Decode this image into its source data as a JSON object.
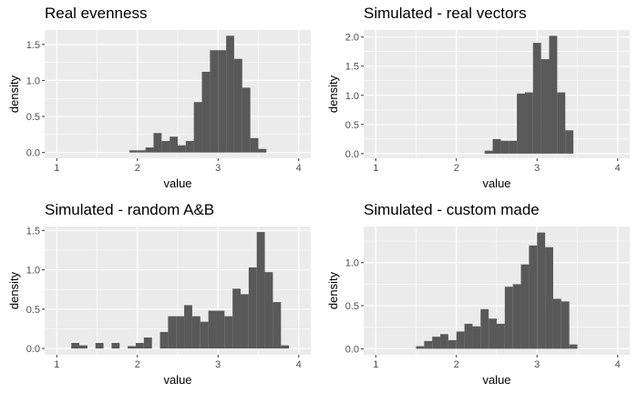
{
  "chart_data": [
    {
      "type": "bar",
      "title": "Real evenness",
      "xlabel": "value",
      "ylabel": "density",
      "xlim": [
        0.85,
        4.15
      ],
      "ylim": [
        -0.08,
        1.7
      ],
      "xticks": [
        "1",
        "2",
        "3",
        "4"
      ],
      "yticks": [
        "0.0",
        "0.5",
        "1.0",
        "1.5"
      ],
      "bin_start": 1.9,
      "bin_width": 0.1,
      "values": [
        0.03,
        0.03,
        0.07,
        0.27,
        0.16,
        0.22,
        0.1,
        0.16,
        0.7,
        1.12,
        1.42,
        1.42,
        1.62,
        1.3,
        0.9,
        0.2,
        0.05
      ],
      "bar_color": "#595959",
      "panel_bg": "#EBEBEB",
      "grid": true
    },
    {
      "type": "bar",
      "title": "Simulated - real vectors",
      "xlabel": "value",
      "ylabel": "density",
      "xlim": [
        0.85,
        4.15
      ],
      "ylim": [
        -0.08,
        2.12
      ],
      "xticks": [
        "1",
        "2",
        "3",
        "4"
      ],
      "yticks": [
        "0.0",
        "0.5",
        "1.0",
        "1.5",
        "2.0"
      ],
      "bin_start": 2.35,
      "bin_width": 0.1,
      "values": [
        0.05,
        0.25,
        0.22,
        0.22,
        1.03,
        1.05,
        1.9,
        1.62,
        2.02,
        1.05,
        0.4
      ],
      "bar_color": "#595959",
      "panel_bg": "#EBEBEB",
      "grid": true
    },
    {
      "type": "bar",
      "title": "Simulated - random A&B",
      "xlabel": "value",
      "ylabel": "density",
      "xlim": [
        0.85,
        4.15
      ],
      "ylim": [
        -0.08,
        1.55
      ],
      "xticks": [
        "1",
        "2",
        "3",
        "4"
      ],
      "yticks": [
        "0.0",
        "0.5",
        "1.0",
        "1.5"
      ],
      "bin_start": 1.18,
      "bin_width": 0.1,
      "values": [
        0.07,
        0.04,
        0.0,
        0.07,
        0.0,
        0.07,
        0.0,
        0.03,
        0.07,
        0.14,
        0.0,
        0.21,
        0.41,
        0.41,
        0.55,
        0.41,
        0.34,
        0.48,
        0.48,
        0.41,
        0.76,
        0.69,
        1.03,
        1.48,
        0.97,
        0.59,
        0.04
      ],
      "bar_color": "#595959",
      "panel_bg": "#EBEBEB",
      "grid": true
    },
    {
      "type": "bar",
      "title": "Simulated - custom made",
      "xlabel": "value",
      "ylabel": "density",
      "xlim": [
        0.85,
        4.15
      ],
      "ylim": [
        -0.07,
        1.42
      ],
      "xticks": [
        "1",
        "2",
        "3",
        "4"
      ],
      "yticks": [
        "0.0",
        "0.5",
        "1.0"
      ],
      "bin_start": 1.5,
      "bin_width": 0.1,
      "values": [
        0.03,
        0.09,
        0.14,
        0.17,
        0.1,
        0.2,
        0.29,
        0.26,
        0.46,
        0.35,
        0.29,
        0.72,
        0.75,
        0.98,
        1.2,
        1.35,
        1.18,
        0.58,
        0.55,
        0.05
      ],
      "bar_color": "#595959",
      "panel_bg": "#EBEBEB",
      "grid": true
    }
  ]
}
